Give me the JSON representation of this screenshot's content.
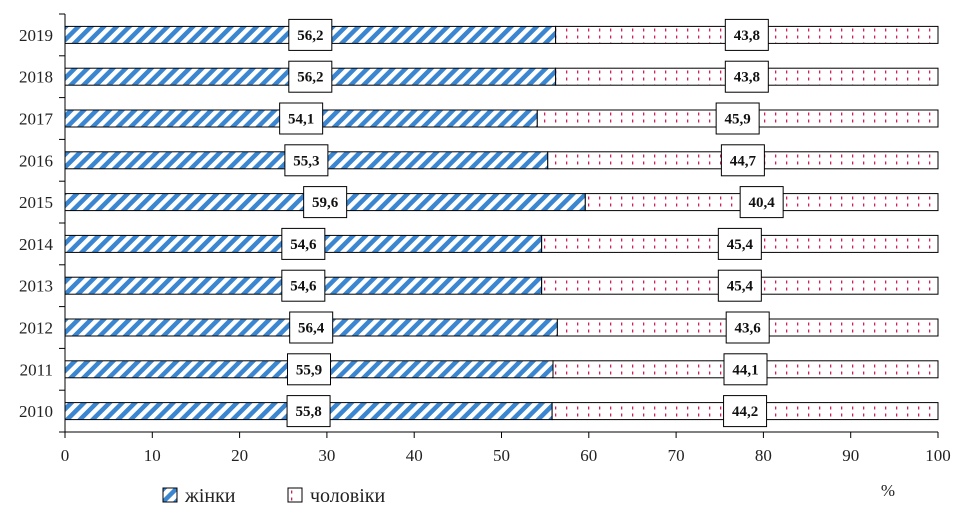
{
  "chart_data": {
    "type": "bar",
    "orientation": "horizontal",
    "stacked": true,
    "percent_stacked": true,
    "categories": [
      "2019",
      "2018",
      "2017",
      "2016",
      "2015",
      "2014",
      "2013",
      "2012",
      "2011",
      "2010"
    ],
    "series": [
      {
        "name": "жінки",
        "values": [
          56.2,
          56.2,
          54.1,
          55.3,
          59.6,
          54.6,
          54.6,
          56.4,
          55.9,
          55.8
        ],
        "labels": [
          "56,2",
          "56,2",
          "54,1",
          "55,3",
          "59,6",
          "54,6",
          "54,6",
          "56,4",
          "55,9",
          "55,8"
        ]
      },
      {
        "name": "чоловіки",
        "values": [
          43.8,
          43.8,
          45.9,
          44.7,
          40.4,
          45.4,
          45.4,
          43.6,
          44.1,
          44.2
        ],
        "labels": [
          "43,8",
          "43,8",
          "45,9",
          "44,7",
          "40,4",
          "45,4",
          "45,4",
          "43,6",
          "44,1",
          "44,2"
        ]
      }
    ],
    "xlim": [
      0,
      100
    ],
    "xticks": [
      "0",
      "10",
      "20",
      "30",
      "40",
      "50",
      "60",
      "70",
      "80",
      "90",
      "100"
    ],
    "xlabel": "%",
    "grid": false,
    "legend": "bottom-left"
  },
  "colors": {
    "women_stripe": "#3a86d0",
    "men_stripe": "#d0205a",
    "axis": "#000000"
  }
}
